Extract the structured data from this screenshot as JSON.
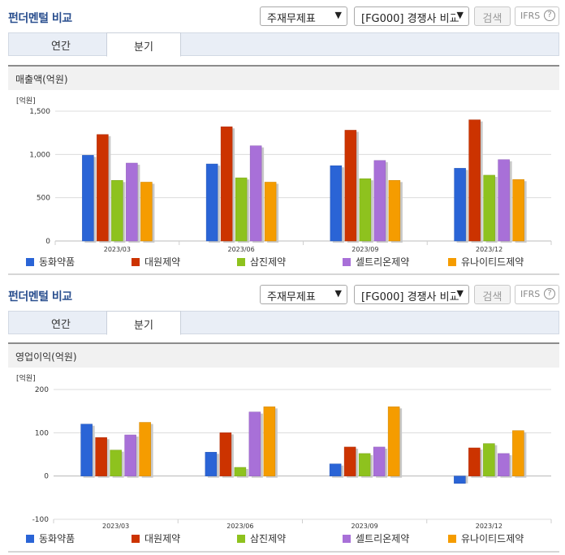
{
  "sections": [
    {
      "title": "펀더멘털 비교",
      "select1": "주재무제표",
      "select2": "[FG000] 경쟁사 비교",
      "search_label": "검색",
      "ifrs_label": "IFRS",
      "ifrs_help": "?",
      "tabs": [
        {
          "label": "연간"
        },
        {
          "label": "분기"
        }
      ],
      "active_tab": 1,
      "panel_title": "매출액(억원)"
    },
    {
      "title": "펀더멘털 비교",
      "select1": "주재무제표",
      "select2": "[FG000] 경쟁사 비교",
      "search_label": "검색",
      "ifrs_label": "IFRS",
      "ifrs_help": "?",
      "tabs": [
        {
          "label": "연간"
        },
        {
          "label": "분기"
        }
      ],
      "active_tab": 1,
      "panel_title": "영업이익(억원)"
    }
  ],
  "colors": {
    "동화약품": "#2a64d6",
    "대원제약": "#cc3300",
    "삼진제약": "#8ec21e",
    "셀트리온제약": "#a870d8",
    "유나이티드제약": "#f59c00"
  },
  "chart_data": [
    {
      "type": "bar",
      "unit_label": "[억원]",
      "categories": [
        "2023/03",
        "2023/06",
        "2023/09",
        "2023/12"
      ],
      "ylim": [
        0,
        1500
      ],
      "yticks": [
        0,
        500,
        1000,
        1500
      ],
      "ytick_labels": [
        "0",
        "500",
        "1,000",
        "1,500"
      ],
      "grid": true,
      "legend_position": "bottom",
      "series": [
        {
          "name": "동화약품",
          "values": [
            990,
            890,
            870,
            840
          ]
        },
        {
          "name": "대원제약",
          "values": [
            1230,
            1320,
            1280,
            1400
          ]
        },
        {
          "name": "삼진제약",
          "values": [
            700,
            730,
            720,
            760
          ]
        },
        {
          "name": "셀트리온제약",
          "values": [
            900,
            1100,
            930,
            940
          ]
        },
        {
          "name": "유나이티드제약",
          "values": [
            680,
            680,
            700,
            710
          ]
        }
      ]
    },
    {
      "type": "bar",
      "unit_label": "[억원]",
      "categories": [
        "2023/03",
        "2023/06",
        "2023/09",
        "2023/12"
      ],
      "ylim": [
        -100,
        200
      ],
      "yticks": [
        -100,
        0,
        100,
        200
      ],
      "ytick_labels": [
        "-100",
        "0",
        "100",
        "200"
      ],
      "grid": true,
      "legend_position": "bottom",
      "series": [
        {
          "name": "동화약품",
          "values": [
            120,
            55,
            28,
            -17
          ]
        },
        {
          "name": "대원제약",
          "values": [
            89,
            100,
            67,
            65
          ]
        },
        {
          "name": "삼진제약",
          "values": [
            60,
            20,
            52,
            75
          ]
        },
        {
          "name": "셀트리온제약",
          "values": [
            95,
            148,
            67,
            52
          ]
        },
        {
          "name": "유나이티드제약",
          "values": [
            124,
            160,
            160,
            105
          ]
        }
      ]
    }
  ]
}
